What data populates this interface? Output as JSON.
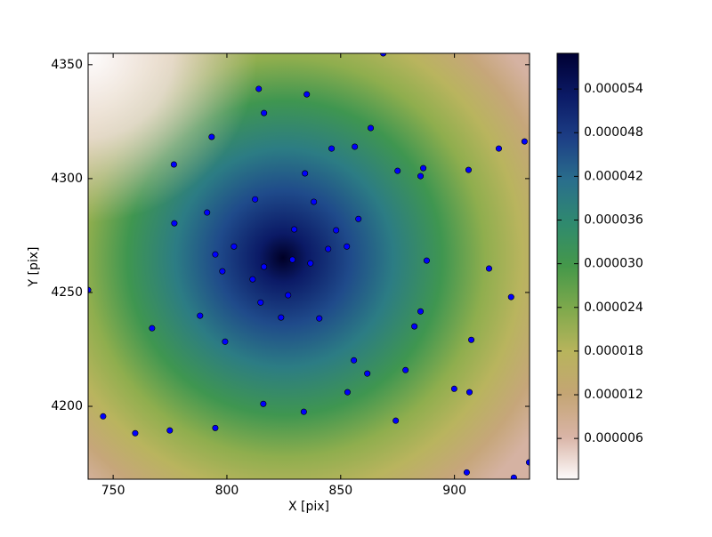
{
  "chart_data": {
    "type": "scatter",
    "xlabel": "X [pix]",
    "ylabel": "Y [pix]",
    "xlim": [
      739,
      933
    ],
    "ylim": [
      4168,
      4355
    ],
    "xticks": [
      750,
      800,
      850,
      900
    ],
    "yticks": [
      4200,
      4250,
      4300,
      4350
    ],
    "series": [
      {
        "color": "#0000ff",
        "x": [
          868.7,
          814.0,
          835.1,
          816.3,
          863.2,
          793.3,
          846.0,
          856.2,
          919.5,
          930.8,
          776.7,
          886.3,
          875.0,
          906.2,
          885.1,
          834.3,
          812.4,
          838.2,
          791.3,
          857.8,
          776.9,
          829.6,
          848.0,
          803.1,
          852.7,
          844.5,
          794.9,
          828.8,
          836.7,
          887.8,
          798.0,
          915.2,
          816.3,
          811.3,
          826.9,
          924.9,
          739.0,
          814.8,
          885.1,
          788.2,
          823.8,
          840.6,
          882.4,
          767.1,
          907.4,
          799.2,
          855.8,
          878.5,
          861.7,
          899.9,
          906.6,
          853.0,
          816.0,
          833.8,
          874.2,
          745.6,
          759.7,
          774.9,
          794.9,
          905.4,
          926.1,
          932.8
        ],
        "values": [
          4355.0,
          4339.4,
          4337.0,
          4328.8,
          4322.2,
          4318.3,
          4313.2,
          4314.0,
          4313.2,
          4316.3,
          4306.2,
          4304.6,
          4303.4,
          4303.8,
          4301.1,
          4302.3,
          4290.9,
          4289.8,
          4285.1,
          4282.3,
          4280.4,
          4277.7,
          4277.3,
          4270.2,
          4270.2,
          4269.1,
          4266.7,
          4264.4,
          4262.8,
          4264.0,
          4259.3,
          4260.5,
          4261.3,
          4255.8,
          4248.8,
          4248.0,
          4251.1,
          4245.6,
          4241.7,
          4239.8,
          4239.0,
          4238.6,
          4235.1,
          4234.3,
          4229.2,
          4228.4,
          4220.2,
          4215.9,
          4214.4,
          4207.7,
          4206.2,
          4206.2,
          4201.1,
          4197.6,
          4193.7,
          4195.6,
          4188.2,
          4189.4,
          4190.5,
          4171.0,
          4168.7,
          4175.4
        ]
      }
    ],
    "colorbar": {
      "clim": [
        4e-07,
        5.89e-05
      ],
      "colormap": [
        "#fdfbfb",
        "#d9b4a6",
        "#c4a574",
        "#b8b45c",
        "#7fa94c",
        "#45984a",
        "#2f8a6e",
        "#2a6f8c",
        "#1d3f86",
        "#0b1a66",
        "#000033"
      ],
      "ticks": [
        {
          "value": 6e-06,
          "label": "0.000006"
        },
        {
          "value": 1.2e-05,
          "label": "0.000012"
        },
        {
          "value": 1.8e-05,
          "label": "0.000018"
        },
        {
          "value": 2.4e-05,
          "label": "0.000024"
        },
        {
          "value": 3e-05,
          "label": "0.000030"
        },
        {
          "value": 3.6e-05,
          "label": "0.000036"
        },
        {
          "value": 4.2e-05,
          "label": "0.000042"
        },
        {
          "value": 4.8e-05,
          "label": "0.000048"
        },
        {
          "value": 5.4e-05,
          "label": "0.000054"
        }
      ]
    }
  }
}
